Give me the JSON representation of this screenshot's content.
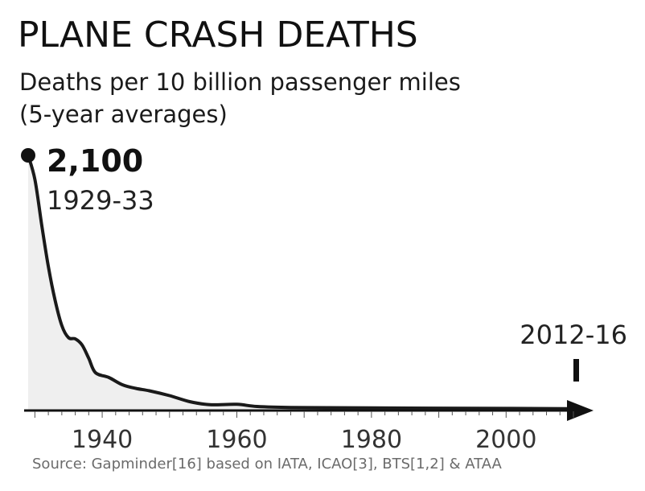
{
  "chart_data": {
    "type": "area",
    "title": "PLANE CRASH DEATHS",
    "subtitle_lines": [
      "Deaths per 10 billion passenger miles",
      "(5-year averages)"
    ],
    "xlabel": "",
    "ylabel": "Deaths per 10 billion passenger miles",
    "x_ticks": [
      1940,
      1960,
      1980,
      2000
    ],
    "xlim": [
      1929,
      2010
    ],
    "ylim": [
      0,
      2100
    ],
    "points": [
      {
        "year": 1929,
        "value": 2100
      },
      {
        "year": 1930,
        "value": 1900
      },
      {
        "year": 1931,
        "value": 1530
      },
      {
        "year": 1932,
        "value": 1180
      },
      {
        "year": 1933,
        "value": 900
      },
      {
        "year": 1934,
        "value": 690
      },
      {
        "year": 1935,
        "value": 590
      },
      {
        "year": 1936,
        "value": 580
      },
      {
        "year": 1937,
        "value": 530
      },
      {
        "year": 1938,
        "value": 420
      },
      {
        "year": 1939,
        "value": 300
      },
      {
        "year": 1941,
        "value": 260
      },
      {
        "year": 1943,
        "value": 200
      },
      {
        "year": 1945,
        "value": 170
      },
      {
        "year": 1947,
        "value": 150
      },
      {
        "year": 1950,
        "value": 110
      },
      {
        "year": 1953,
        "value": 60
      },
      {
        "year": 1956,
        "value": 35
      },
      {
        "year": 1960,
        "value": 38
      },
      {
        "year": 1963,
        "value": 20
      },
      {
        "year": 1968,
        "value": 12
      },
      {
        "year": 1980,
        "value": 8
      },
      {
        "year": 2000,
        "value": 4
      },
      {
        "year": 2009,
        "value": 2
      }
    ],
    "annotations": {
      "peak": {
        "value_label": "2,100",
        "period_label": "1929-33"
      },
      "end": {
        "period_label": "2012-16"
      }
    }
  },
  "source": "Source: Gapminder[16] based on IATA, ICAO[3], BTS[1,2] & ATAA"
}
